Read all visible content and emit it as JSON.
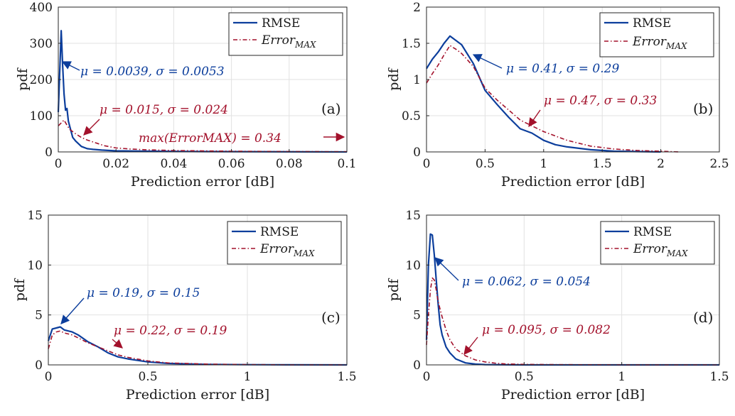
{
  "figure": {
    "colors": {
      "rmse": "#0c3e9c",
      "errmax": "#a3112b",
      "grid": "#e2e2e2",
      "axis": "#262626"
    }
  },
  "chart_data": [
    {
      "type": "line",
      "panel_label": "(a)",
      "xlabel": "Prediction error [dB]",
      "ylabel": "pdf",
      "xlim": [
        0,
        0.1
      ],
      "ylim": [
        0,
        400
      ],
      "xticks": [
        0,
        0.02,
        0.04,
        0.06,
        0.08,
        0.1
      ],
      "xtick_labels": [
        "0",
        "0.02",
        "0.04",
        "0.06",
        "0.08",
        "0.1"
      ],
      "yticks": [
        0,
        100,
        200,
        300,
        400
      ],
      "ytick_labels": [
        "0",
        "100",
        "200",
        "300",
        "400"
      ],
      "grid": true,
      "legend_position": "top-right",
      "series": [
        {
          "name": "RMSE",
          "style": "solid",
          "color": "#0c3e9c",
          "x": [
            0,
            0.0005,
            0.001,
            0.0015,
            0.002,
            0.0025,
            0.003,
            0.0035,
            0.004,
            0.005,
            0.006,
            0.008,
            0.01,
            0.012,
            0.015,
            0.02,
            0.03,
            0.05,
            0.1
          ],
          "y": [
            110,
            220,
            335,
            240,
            160,
            115,
            120,
            85,
            70,
            40,
            30,
            15,
            9,
            7,
            5,
            3,
            2,
            1,
            0
          ]
        },
        {
          "name": "Error_MAX",
          "style": "dash-dot",
          "color": "#a3112b",
          "x": [
            0,
            0.001,
            0.002,
            0.003,
            0.004,
            0.006,
            0.008,
            0.01,
            0.013,
            0.016,
            0.02,
            0.025,
            0.03,
            0.04,
            0.05,
            0.06,
            0.08,
            0.1
          ],
          "y": [
            72,
            80,
            88,
            74,
            62,
            50,
            40,
            33,
            25,
            17,
            11,
            8,
            6,
            4,
            3,
            2,
            1,
            0.5
          ]
        }
      ],
      "annotations": [
        {
          "text": "μ = 0.0039, σ = 0.0053",
          "series": "RMSE"
        },
        {
          "text": "μ = 0.015, σ = 0.024",
          "series": "Error_MAX"
        },
        {
          "text": "max(ErrorMAX) = 0.34",
          "series": "Error_MAX"
        }
      ]
    },
    {
      "type": "line",
      "panel_label": "(b)",
      "xlabel": "Prediction error [dB]",
      "ylabel": "pdf",
      "xlim": [
        0,
        2.5
      ],
      "ylim": [
        0,
        2
      ],
      "xticks": [
        0,
        0.5,
        1,
        1.5,
        2,
        2.5
      ],
      "xtick_labels": [
        "0",
        "0.5",
        "1",
        "1.5",
        "2",
        "2.5"
      ],
      "yticks": [
        0,
        0.5,
        1,
        1.5,
        2
      ],
      "ytick_labels": [
        "0",
        "0.5",
        "1",
        "1.5",
        "2"
      ],
      "grid": true,
      "legend_position": "top-right",
      "series": [
        {
          "name": "RMSE",
          "style": "solid",
          "color": "#0c3e9c",
          "x": [
            0,
            0.05,
            0.1,
            0.15,
            0.2,
            0.25,
            0.3,
            0.4,
            0.5,
            0.6,
            0.7,
            0.8,
            0.9,
            1.0,
            1.1,
            1.2,
            1.4,
            1.6,
            1.8,
            2.0
          ],
          "y": [
            1.15,
            1.28,
            1.38,
            1.5,
            1.6,
            1.54,
            1.48,
            1.22,
            0.85,
            0.66,
            0.48,
            0.32,
            0.26,
            0.16,
            0.1,
            0.07,
            0.03,
            0.01,
            0.005,
            0
          ]
        },
        {
          "name": "Error_MAX",
          "style": "dash-dot",
          "color": "#a3112b",
          "x": [
            0,
            0.05,
            0.1,
            0.15,
            0.2,
            0.25,
            0.3,
            0.4,
            0.5,
            0.6,
            0.7,
            0.8,
            0.9,
            1.0,
            1.2,
            1.4,
            1.6,
            1.8,
            2.0,
            2.15
          ],
          "y": [
            0.95,
            1.08,
            1.2,
            1.34,
            1.47,
            1.42,
            1.36,
            1.18,
            0.88,
            0.72,
            0.58,
            0.44,
            0.36,
            0.28,
            0.16,
            0.08,
            0.04,
            0.02,
            0.01,
            0
          ]
        }
      ],
      "annotations": [
        {
          "text": "μ = 0.41, σ = 0.29",
          "series": "RMSE"
        },
        {
          "text": "μ = 0.47, σ = 0.33",
          "series": "Error_MAX"
        }
      ]
    },
    {
      "type": "line",
      "panel_label": "(c)",
      "xlabel": "Prediction error [dB]",
      "ylabel": "pdf",
      "xlim": [
        0,
        1.5
      ],
      "ylim": [
        0,
        15
      ],
      "xticks": [
        0,
        0.5,
        1,
        1.5
      ],
      "xtick_labels": [
        "0",
        "0.5",
        "1",
        "1.5"
      ],
      "yticks": [
        0,
        5,
        10,
        15
      ],
      "ytick_labels": [
        "0",
        "5",
        "10",
        "15"
      ],
      "grid": true,
      "legend_position": "top-right",
      "series": [
        {
          "name": "RMSE",
          "style": "solid",
          "color": "#0c3e9c",
          "x": [
            0,
            0.02,
            0.04,
            0.06,
            0.08,
            0.1,
            0.12,
            0.15,
            0.2,
            0.25,
            0.3,
            0.35,
            0.4,
            0.5,
            0.6,
            0.8,
            1.0,
            1.2,
            1.5
          ],
          "y": [
            2.4,
            3.6,
            3.7,
            3.8,
            3.5,
            3.4,
            3.3,
            3.0,
            2.3,
            1.8,
            1.2,
            0.8,
            0.6,
            0.3,
            0.15,
            0.05,
            0.02,
            0.01,
            0
          ]
        },
        {
          "name": "Error_MAX",
          "style": "dash-dot",
          "color": "#a3112b",
          "x": [
            0,
            0.02,
            0.04,
            0.06,
            0.08,
            0.1,
            0.12,
            0.15,
            0.2,
            0.25,
            0.3,
            0.35,
            0.4,
            0.5,
            0.6,
            0.8,
            1.0,
            1.2,
            1.5
          ],
          "y": [
            1.6,
            3.0,
            3.3,
            3.4,
            3.2,
            3.1,
            3.0,
            2.7,
            2.2,
            1.8,
            1.4,
            1.0,
            0.75,
            0.4,
            0.2,
            0.08,
            0.03,
            0.01,
            0
          ]
        }
      ],
      "annotations": [
        {
          "text": "μ = 0.19, σ = 0.15",
          "series": "RMSE"
        },
        {
          "text": "μ = 0.22, σ = 0.19",
          "series": "Error_MAX"
        }
      ]
    },
    {
      "type": "line",
      "panel_label": "(d)",
      "xlabel": "Prediction error [dB]",
      "ylabel": "pdf",
      "xlim": [
        0,
        1.5
      ],
      "ylim": [
        0,
        15
      ],
      "xticks": [
        0,
        0.5,
        1,
        1.5
      ],
      "xtick_labels": [
        "0",
        "0.5",
        "1",
        "1.5"
      ],
      "yticks": [
        0,
        5,
        10,
        15
      ],
      "ytick_labels": [
        "0",
        "5",
        "10",
        "15"
      ],
      "grid": true,
      "legend_position": "top-right",
      "series": [
        {
          "name": "RMSE",
          "style": "solid",
          "color": "#0c3e9c",
          "x": [
            0,
            0.01,
            0.02,
            0.03,
            0.04,
            0.05,
            0.06,
            0.07,
            0.08,
            0.1,
            0.12,
            0.15,
            0.2,
            0.25,
            0.3,
            0.5,
            1.0,
            1.5
          ],
          "y": [
            2.5,
            10,
            13.1,
            13.0,
            11,
            8.5,
            6,
            4,
            3,
            1.8,
            1.2,
            0.6,
            0.2,
            0.08,
            0.03,
            0,
            0,
            0
          ]
        },
        {
          "name": "Error_MAX",
          "style": "dash-dot",
          "color": "#a3112b",
          "x": [
            0,
            0.01,
            0.02,
            0.03,
            0.04,
            0.05,
            0.06,
            0.08,
            0.1,
            0.12,
            0.15,
            0.2,
            0.25,
            0.3,
            0.35,
            0.4,
            0.5,
            0.7,
            1.0,
            1.5
          ],
          "y": [
            2,
            5,
            7.5,
            8.7,
            8.5,
            7.5,
            6.3,
            4.8,
            3.5,
            2.5,
            1.6,
            0.9,
            0.5,
            0.3,
            0.18,
            0.1,
            0.05,
            0.02,
            0.01,
            0
          ]
        }
      ],
      "annotations": [
        {
          "text": "μ = 0.062, σ = 0.054",
          "series": "RMSE"
        },
        {
          "text": "μ = 0.095, σ = 0.082",
          "series": "Error_MAX"
        }
      ]
    }
  ],
  "legend": {
    "rmse_label": "RMSE",
    "errmax_base": "Error",
    "errmax_sub": "MAX"
  }
}
